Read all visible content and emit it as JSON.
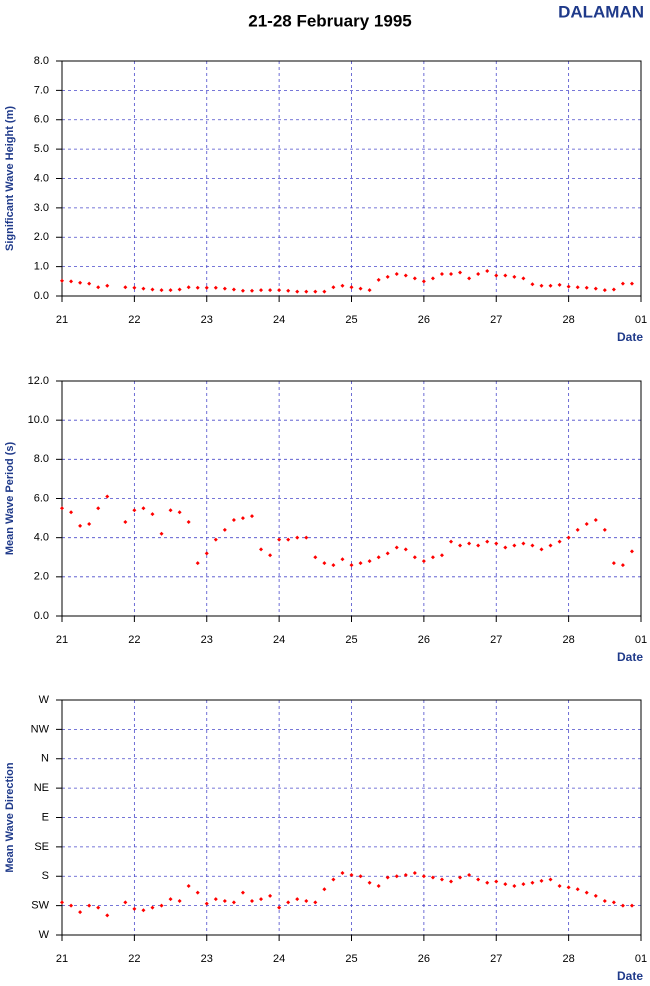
{
  "header": {
    "title": "21-28 February 1995",
    "station": "DALAMAN"
  },
  "chart_data": [
    {
      "type": "scatter",
      "y_label": "Significant Wave Height (m)",
      "x_label": "Date",
      "color": "#ff0000",
      "grid": true,
      "xlim": [
        21,
        29
      ],
      "xticks": [
        21,
        22,
        23,
        24,
        25,
        26,
        27,
        28,
        {
          "value": 29,
          "label": "01"
        }
      ],
      "ylim": [
        0,
        8
      ],
      "yticks": [
        {
          "value": 0,
          "label": "0.0"
        },
        {
          "value": 1,
          "label": "1.0"
        },
        {
          "value": 2,
          "label": "2.0"
        },
        {
          "value": 3,
          "label": "3.0"
        },
        {
          "value": 4,
          "label": "4.0"
        },
        {
          "value": 5,
          "label": "5.0"
        },
        {
          "value": 6,
          "label": "6.0"
        },
        {
          "value": 7,
          "label": "7.0"
        },
        {
          "value": 8,
          "label": "8.0"
        }
      ],
      "x": [
        21,
        21.125,
        21.25,
        21.375,
        21.5,
        21.625,
        21.75,
        21.875,
        22,
        22.125,
        22.25,
        22.375,
        22.5,
        22.625,
        22.75,
        22.875,
        23,
        23.125,
        23.25,
        23.375,
        23.5,
        23.625,
        23.75,
        23.875,
        24,
        24.125,
        24.25,
        24.375,
        24.5,
        24.625,
        24.75,
        24.875,
        25,
        25.125,
        25.25,
        25.375,
        25.5,
        25.625,
        25.75,
        25.875,
        26,
        26.125,
        26.25,
        26.375,
        26.5,
        26.625,
        26.75,
        26.875,
        27,
        27.125,
        27.25,
        27.375,
        27.5,
        27.625,
        27.75,
        27.875,
        28,
        28.125,
        28.25,
        28.375,
        28.5,
        28.625,
        28.75,
        28.875
      ],
      "values": [
        0.52,
        0.5,
        0.45,
        0.42,
        0.3,
        0.35,
        null,
        0.3,
        0.28,
        0.25,
        0.22,
        0.2,
        0.2,
        0.22,
        0.3,
        0.28,
        0.28,
        0.28,
        0.25,
        0.22,
        0.18,
        0.18,
        0.2,
        0.2,
        0.2,
        0.18,
        0.15,
        0.15,
        0.15,
        0.15,
        0.3,
        0.35,
        0.3,
        0.25,
        0.2,
        0.55,
        0.65,
        0.75,
        0.7,
        0.6,
        0.5,
        0.6,
        0.75,
        0.75,
        0.8,
        0.6,
        0.75,
        0.85,
        0.7,
        0.7,
        0.65,
        0.6,
        0.4,
        0.35,
        0.35,
        0.38,
        0.32,
        0.3,
        0.28,
        0.25,
        0.2,
        0.22,
        0.42,
        0.42
      ]
    },
    {
      "type": "scatter",
      "y_label": "Mean Wave Period (s)",
      "x_label": "Date",
      "color": "#ff0000",
      "grid": true,
      "xlim": [
        21,
        29
      ],
      "xticks": [
        21,
        22,
        23,
        24,
        25,
        26,
        27,
        28,
        {
          "value": 29,
          "label": "01"
        }
      ],
      "ylim": [
        0,
        12
      ],
      "yticks": [
        {
          "value": 0,
          "label": "0.0"
        },
        {
          "value": 2,
          "label": "2.0"
        },
        {
          "value": 4,
          "label": "4.0"
        },
        {
          "value": 6,
          "label": "6.0"
        },
        {
          "value": 8,
          "label": "8.0"
        },
        {
          "value": 10,
          "label": "10.0"
        },
        {
          "value": 12,
          "label": "12.0"
        }
      ],
      "x": [
        21,
        21.125,
        21.25,
        21.375,
        21.5,
        21.625,
        21.75,
        21.875,
        22,
        22.125,
        22.25,
        22.375,
        22.5,
        22.625,
        22.75,
        22.875,
        23,
        23.125,
        23.25,
        23.375,
        23.5,
        23.625,
        23.75,
        23.875,
        24,
        24.125,
        24.25,
        24.375,
        24.5,
        24.625,
        24.75,
        24.875,
        25,
        25.125,
        25.25,
        25.375,
        25.5,
        25.625,
        25.75,
        25.875,
        26,
        26.125,
        26.25,
        26.375,
        26.5,
        26.625,
        26.75,
        26.875,
        27,
        27.125,
        27.25,
        27.375,
        27.5,
        27.625,
        27.75,
        27.875,
        28,
        28.125,
        28.25,
        28.375,
        28.5,
        28.625,
        28.75,
        28.875
      ],
      "values": [
        5.5,
        5.3,
        4.6,
        4.7,
        5.5,
        6.1,
        null,
        4.8,
        5.4,
        5.5,
        5.2,
        4.2,
        5.4,
        5.3,
        4.8,
        2.7,
        3.2,
        3.9,
        4.4,
        4.9,
        5.0,
        5.1,
        3.4,
        3.1,
        3.9,
        3.9,
        4.0,
        4.0,
        3.0,
        2.7,
        2.6,
        2.9,
        2.6,
        2.7,
        2.8,
        3.0,
        3.2,
        3.5,
        3.4,
        3.0,
        2.8,
        3.0,
        3.1,
        3.8,
        3.6,
        3.7,
        3.6,
        3.8,
        3.7,
        3.5,
        3.6,
        3.7,
        3.6,
        3.4,
        3.6,
        3.8,
        4.0,
        4.4,
        4.7,
        4.9,
        4.4,
        2.7,
        2.6,
        3.3
      ]
    },
    {
      "type": "scatter",
      "y_label": "Mean Wave Direction",
      "x_label": "Date",
      "color": "#ff0000",
      "grid": true,
      "xlim": [
        21,
        29
      ],
      "xticks": [
        21,
        22,
        23,
        24,
        25,
        26,
        27,
        28,
        {
          "value": 29,
          "label": "01"
        }
      ],
      "ylim": [
        270,
        -90
      ],
      "yticks": [
        {
          "value": 270,
          "label": "W"
        },
        {
          "value": 225,
          "label": "SW"
        },
        {
          "value": 180,
          "label": "S"
        },
        {
          "value": 135,
          "label": "SE"
        },
        {
          "value": 90,
          "label": "E"
        },
        {
          "value": 45,
          "label": "NE"
        },
        {
          "value": 0,
          "label": "N"
        },
        {
          "value": -45,
          "label": "NW"
        },
        {
          "value": -90,
          "label": "W"
        }
      ],
      "x": [
        21,
        21.125,
        21.25,
        21.375,
        21.5,
        21.625,
        21.75,
        21.875,
        22,
        22.125,
        22.25,
        22.375,
        22.5,
        22.625,
        22.75,
        22.875,
        23,
        23.125,
        23.25,
        23.375,
        23.5,
        23.625,
        23.75,
        23.875,
        24,
        24.125,
        24.25,
        24.375,
        24.5,
        24.625,
        24.75,
        24.875,
        25,
        25.125,
        25.25,
        25.375,
        25.5,
        25.625,
        25.75,
        25.875,
        26,
        26.125,
        26.25,
        26.375,
        26.5,
        26.625,
        26.75,
        26.875,
        27,
        27.125,
        27.25,
        27.375,
        27.5,
        27.625,
        27.75,
        27.875,
        28,
        28.125,
        28.25,
        28.375,
        28.5,
        28.625,
        28.75,
        28.875
      ],
      "values": [
        220,
        225,
        235,
        225,
        228,
        240,
        null,
        220,
        230,
        232,
        228,
        225,
        215,
        218,
        195,
        205,
        222,
        215,
        218,
        220,
        205,
        218,
        215,
        210,
        228,
        220,
        215,
        218,
        220,
        200,
        185,
        175,
        178,
        180,
        190,
        195,
        182,
        180,
        178,
        175,
        180,
        182,
        185,
        188,
        182,
        178,
        185,
        190,
        188,
        192,
        195,
        192,
        190,
        187,
        185,
        195,
        197,
        200,
        205,
        210,
        218,
        220,
        225,
        225
      ]
    }
  ]
}
